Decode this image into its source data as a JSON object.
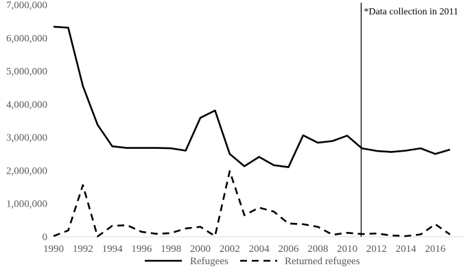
{
  "chart_data": {
    "type": "line",
    "title": "",
    "xlabel": "",
    "ylabel": "",
    "x": [
      1990,
      1991,
      1992,
      1993,
      1994,
      1995,
      1996,
      1997,
      1998,
      1999,
      2000,
      2001,
      2002,
      2003,
      2004,
      2005,
      2006,
      2007,
      2008,
      2009,
      2010,
      2011,
      2012,
      2013,
      2014,
      2015,
      2016,
      2017
    ],
    "x_tick_labels": [
      "1990",
      "1992",
      "1994",
      "1996",
      "1998",
      "2000",
      "2002",
      "2004",
      "2006",
      "2008",
      "2010",
      "2012",
      "2014",
      "2016"
    ],
    "y_tick_labels": [
      "0",
      "1,000,000",
      "2,000,000",
      "3,000,000",
      "4,000,000",
      "5,000,000",
      "6,000,000",
      "7,000,000"
    ],
    "xlim": [
      1990,
      2017.5
    ],
    "ylim": [
      0,
      7000000
    ],
    "grid": false,
    "legend_position": "bottom",
    "series": [
      {
        "name": "Refugees",
        "style": "solid",
        "color": "#000000",
        "values": [
          6340000,
          6310000,
          4550000,
          3380000,
          2730000,
          2680000,
          2680000,
          2680000,
          2670000,
          2600000,
          3590000,
          3810000,
          2500000,
          2130000,
          2410000,
          2160000,
          2100000,
          3060000,
          2840000,
          2890000,
          3050000,
          2670000,
          2590000,
          2560000,
          2600000,
          2670000,
          2500000,
          2630000
        ]
      },
      {
        "name": "Returned refugees",
        "style": "dashed",
        "color": "#000000",
        "values": [
          20000,
          190000,
          1560000,
          10000,
          330000,
          350000,
          150000,
          90000,
          110000,
          250000,
          300000,
          20000,
          1980000,
          650000,
          880000,
          760000,
          400000,
          380000,
          300000,
          60000,
          120000,
          80000,
          100000,
          40000,
          20000,
          70000,
          380000,
          70000
        ]
      }
    ],
    "annotations": [
      {
        "x": 2011,
        "type": "vertical-line",
        "text": "*Data collection in 2011"
      }
    ]
  }
}
